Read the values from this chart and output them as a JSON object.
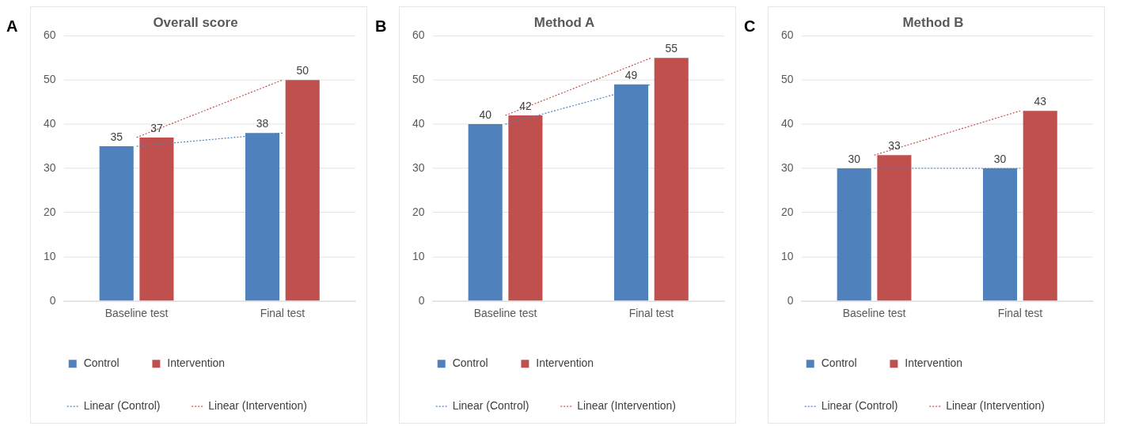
{
  "chart_data": [
    {
      "type": "bar",
      "title": "Overall score",
      "annotations": [
        "A"
      ],
      "categories": [
        "Baseline test",
        "Final test"
      ],
      "ylim": [
        0,
        60
      ],
      "yticks": [
        0,
        10,
        20,
        30,
        40,
        50,
        60
      ],
      "grid": "y",
      "legend": "bottom",
      "marker": "none",
      "series": [
        {
          "name": "Control",
          "color": "#4f81bd",
          "values": [
            35,
            38
          ],
          "value_labels": [
            "35",
            "38"
          ]
        },
        {
          "name": "Intervention",
          "color": "#c0504d",
          "values": [
            37,
            50
          ],
          "value_labels": [
            "37",
            "50"
          ]
        },
        {
          "name": "Linear (Control)",
          "type": "line",
          "line_style": "dotted",
          "color": "#4f81bd",
          "values": [
            35,
            38
          ]
        },
        {
          "name": "Linear (Intervention)",
          "type": "line",
          "line_style": "dotted",
          "color": "#c0504d",
          "values": [
            37,
            50
          ]
        }
      ]
    },
    {
      "type": "bar",
      "title": "Method A",
      "annotations": [
        "B"
      ],
      "categories": [
        "Baseline test",
        "Final test"
      ],
      "ylim": [
        0,
        60
      ],
      "yticks": [
        0,
        10,
        20,
        30,
        40,
        50,
        60
      ],
      "grid": "y",
      "legend": "bottom",
      "marker": "none",
      "series": [
        {
          "name": "Control",
          "color": "#4f81bd",
          "values": [
            40,
            49
          ],
          "value_labels": [
            "40",
            "49"
          ]
        },
        {
          "name": "Intervention",
          "color": "#c0504d",
          "values": [
            42,
            55
          ],
          "value_labels": [
            "42",
            "55"
          ]
        },
        {
          "name": "Linear (Control)",
          "type": "line",
          "line_style": "dotted",
          "color": "#4f81bd",
          "values": [
            40,
            49
          ]
        },
        {
          "name": "Linear (Intervention)",
          "type": "line",
          "line_style": "dotted",
          "color": "#c0504d",
          "values": [
            42,
            55
          ]
        }
      ]
    },
    {
      "type": "bar",
      "title": "Method B",
      "annotations": [
        "C"
      ],
      "categories": [
        "Baseline test",
        "Final test"
      ],
      "ylim": [
        0,
        60
      ],
      "yticks": [
        0,
        10,
        20,
        30,
        40,
        50,
        60
      ],
      "grid": "y",
      "legend": "bottom",
      "marker": "none",
      "series": [
        {
          "name": "Control",
          "color": "#4f81bd",
          "values": [
            30,
            30
          ],
          "value_labels": [
            "30",
            "30"
          ]
        },
        {
          "name": "Intervention",
          "color": "#c0504d",
          "values": [
            33,
            43
          ],
          "value_labels": [
            "33",
            "43"
          ]
        },
        {
          "name": "Linear (Control)",
          "type": "line",
          "line_style": "dotted",
          "color": "#4f81bd",
          "values": [
            30,
            30
          ]
        },
        {
          "name": "Linear (Intervention)",
          "type": "line",
          "line_style": "dotted",
          "color": "#c0504d",
          "values": [
            33,
            43
          ]
        }
      ]
    }
  ]
}
